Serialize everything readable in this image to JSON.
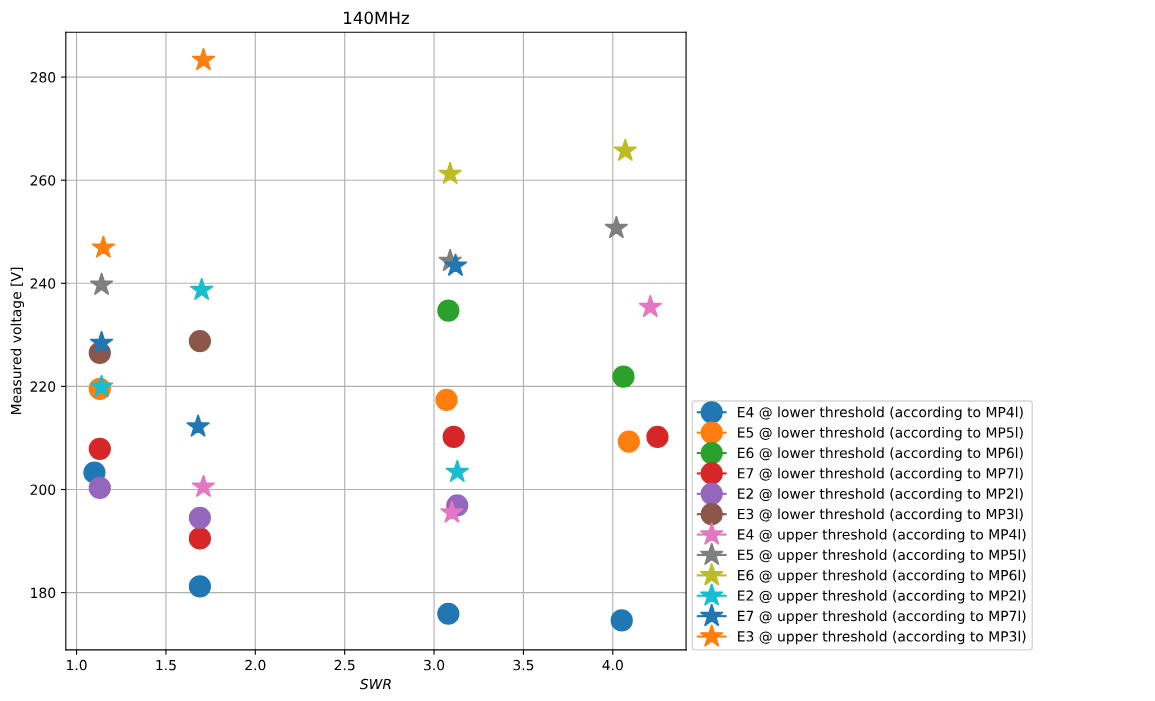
{
  "chart_data": {
    "type": "scatter",
    "title": "140MHz",
    "xlabel": "SWR",
    "ylabel": "Measured voltage [V]",
    "xlim": [
      0.94,
      4.41
    ],
    "ylim": [
      168.9,
      288.7
    ],
    "xticks": [
      {
        "value": 1,
        "label": "1.0"
      },
      {
        "value": 1.5,
        "label": "1.5"
      },
      {
        "value": 2,
        "label": "2.0"
      },
      {
        "value": 2.5,
        "label": "2.5"
      },
      {
        "value": 3,
        "label": "3.0"
      },
      {
        "value": 3.5,
        "label": "3.5"
      },
      {
        "value": 4,
        "label": "4.0"
      }
    ],
    "yticks": [
      180,
      200,
      220,
      240,
      260,
      280
    ],
    "grid": true,
    "legend": "bottom right",
    "series": [
      {
        "name": "E4 @ lower threshold (according to MP4l)",
        "color": "#1f77b4",
        "marker": "circle",
        "x": [
          1.1,
          1.69,
          3.08,
          4.05
        ],
        "values": [
          203.3,
          181.2,
          175.9,
          174.6
        ]
      },
      {
        "name": "E5 @ lower threshold (according to MP5l)",
        "color": "#ff7f0e",
        "marker": "circle",
        "x": [
          1.13,
          3.07,
          4.09
        ],
        "values": [
          219.5,
          217.4,
          209.3
        ]
      },
      {
        "name": "E6 @ lower threshold (according to MP6l)",
        "color": "#2ca02c",
        "marker": "circle",
        "x": [
          3.08,
          4.06
        ],
        "values": [
          234.7,
          221.9
        ]
      },
      {
        "name": "E7 @ lower threshold (according to MP7l)",
        "color": "#d62728",
        "marker": "circle",
        "x": [
          1.13,
          1.69,
          3.11,
          4.25
        ],
        "values": [
          207.9,
          190.5,
          210.2,
          210.2
        ]
      },
      {
        "name": "E2 @ lower threshold (according to MP2l)",
        "color": "#9467bd",
        "marker": "circle",
        "x": [
          1.13,
          1.69,
          3.13
        ],
        "values": [
          200.3,
          194.5,
          196.9
        ]
      },
      {
        "name": "E3 @ lower threshold (according to MP3l)",
        "color": "#8c564b",
        "marker": "circle",
        "x": [
          1.13,
          1.69
        ],
        "values": [
          226.5,
          228.8
        ]
      },
      {
        "name": "E4 @ upper threshold (according to MP4l)",
        "color": "#e377c2",
        "marker": "star",
        "x": [
          1.71,
          3.1,
          4.21
        ],
        "values": [
          200.5,
          195.5,
          235.4
        ]
      },
      {
        "name": "E5 @ upper threshold (according to MP5l)",
        "color": "#7f7f7f",
        "marker": "star",
        "x": [
          1.14,
          3.09,
          4.02
        ],
        "values": [
          239.7,
          244.3,
          250.7
        ]
      },
      {
        "name": "E6 @ upper threshold (according to MP6l)",
        "color": "#bcbd22",
        "marker": "star",
        "x": [
          3.09,
          4.07
        ],
        "values": [
          261.2,
          265.7
        ]
      },
      {
        "name": "E2 @ upper threshold (according to MP2l)",
        "color": "#17becf",
        "marker": "star",
        "x": [
          1.14,
          1.7,
          3.13
        ],
        "values": [
          219.9,
          238.7,
          203.4
        ]
      },
      {
        "name": "E7 @ upper threshold (according to MP7l)",
        "color": "#1f77b4",
        "marker": "star",
        "x": [
          1.14,
          1.68,
          3.12
        ],
        "values": [
          228.4,
          212.2,
          243.4
        ]
      },
      {
        "name": "E3 @ upper threshold (according to MP3l)",
        "color": "#ff7f0e",
        "marker": "star",
        "x": [
          1.15,
          1.71
        ],
        "values": [
          246.9,
          283.3
        ]
      }
    ]
  }
}
